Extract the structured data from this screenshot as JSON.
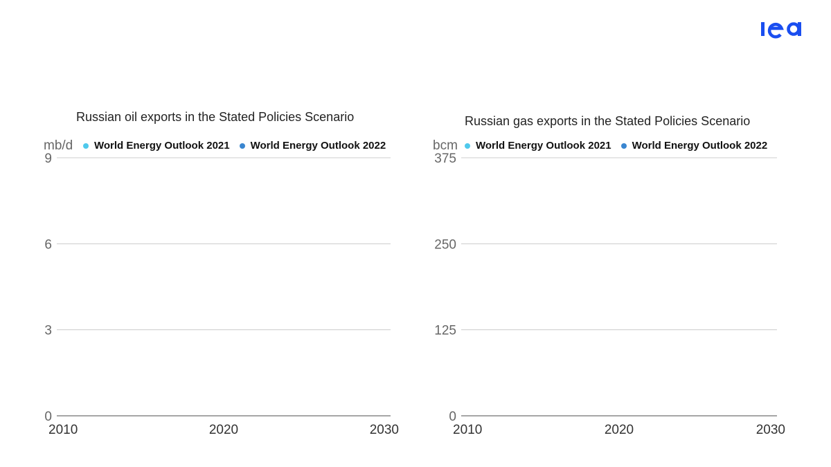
{
  "colors": {
    "brand": "#1a4ef0",
    "series_2021": "#4fc9ec",
    "series_2022": "#3a86d0",
    "grid": "#cccccc",
    "axis": "#888888"
  },
  "logo": {
    "text": "iea"
  },
  "chart_data": [
    {
      "type": "line",
      "title": "Russian oil exports in the Stated Policies Scenario",
      "ylabel": "mb/d",
      "xlabel": "",
      "x_ticks": [
        "2010",
        "2020",
        "2030"
      ],
      "xlim": [
        2010,
        2030
      ],
      "y_ticks": [
        0,
        3,
        6,
        9
      ],
      "ylim": [
        0,
        9
      ],
      "grid": true,
      "legend_placement": "top",
      "series": [
        {
          "name": "World Energy Outlook 2021",
          "color": "#4fc9ec",
          "values": []
        },
        {
          "name": "World Energy Outlook 2022",
          "color": "#3a86d0",
          "values": []
        }
      ]
    },
    {
      "type": "line",
      "title": "Russian gas exports in the Stated Policies Scenario",
      "ylabel": "bcm",
      "xlabel": "",
      "x_ticks": [
        "2010",
        "2020",
        "2030"
      ],
      "xlim": [
        2010,
        2030
      ],
      "y_ticks": [
        0,
        125,
        250,
        375
      ],
      "ylim": [
        0,
        375
      ],
      "grid": true,
      "legend_placement": "top",
      "series": [
        {
          "name": "World Energy Outlook 2021",
          "color": "#4fc9ec",
          "values": []
        },
        {
          "name": "World Energy Outlook 2022",
          "color": "#3a86d0",
          "values": []
        }
      ]
    }
  ]
}
